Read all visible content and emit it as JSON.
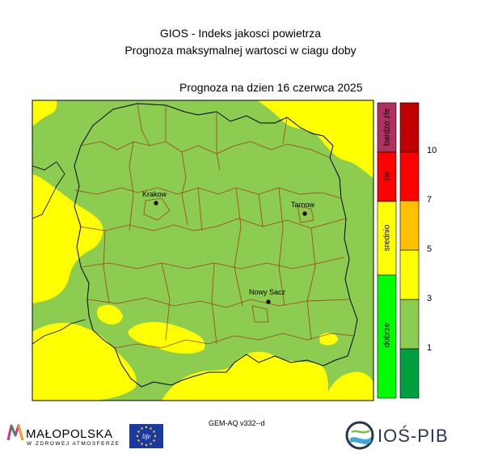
{
  "header": {
    "title_line1": "GIOS - Indeks jakosci powietrza",
    "title_line2": "Prognoza maksymalnej wartosci w ciagu doby",
    "forecast_date": "Prognoza na dzien  16 czerwca 2025"
  },
  "map": {
    "colors": {
      "good": "#8ccc50",
      "moderate": "#ffff00"
    },
    "cities": [
      {
        "name": "Krakow"
      },
      {
        "name": "Tarnow"
      },
      {
        "name": "Nowy Sacz"
      }
    ]
  },
  "legend_categories": {
    "colors": {
      "dobrze": "#00ff00",
      "srednio": "#ffff00",
      "zle": "#ff0000",
      "bardzo_zle": "#b03060"
    },
    "labels": [
      "dobrze",
      "srednio",
      "zle",
      "bardzo zle"
    ]
  },
  "legend_index": {
    "colors": [
      "#00a040",
      "#8ccc50",
      "#ffff00",
      "#ffc000",
      "#ff0000",
      "#c00000"
    ],
    "ticks": [
      "1",
      "3",
      "5",
      "7",
      "10"
    ]
  },
  "footer": {
    "model": "GEM-AQ v332--d",
    "malopolska_name": "MAŁOPOLSKA",
    "malopolska_tagline": "W ZDROWEJ ATMOSFERZE",
    "eu_flag_text": "life",
    "ios_name": "IOŚ-PIB"
  }
}
